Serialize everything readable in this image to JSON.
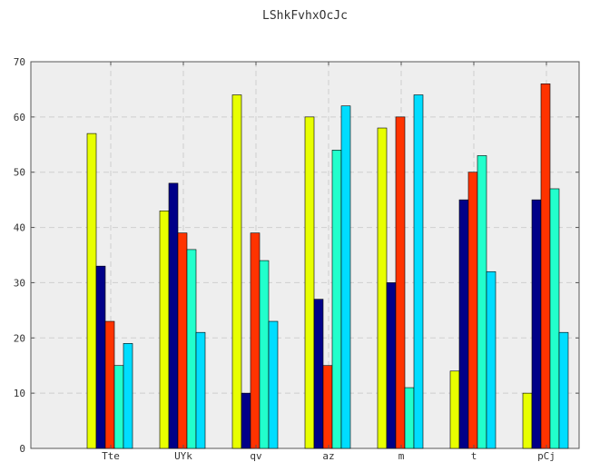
{
  "chart_data": {
    "type": "bar",
    "title": "LShkFvhxOcJc",
    "xlabel": "",
    "ylabel": "",
    "categories": [
      "Tte",
      "UYk",
      "qv",
      "az",
      "m",
      "t",
      "pCj"
    ],
    "series": [
      {
        "values": [
          57,
          43,
          64,
          60,
          58,
          14,
          10
        ],
        "color": "#e8ff00"
      },
      {
        "values": [
          33,
          48,
          10,
          27,
          30,
          45,
          45
        ],
        "color": "#000088"
      },
      {
        "values": [
          23,
          39,
          39,
          15,
          60,
          50,
          66
        ],
        "color": "#ff3300"
      },
      {
        "values": [
          15,
          36,
          34,
          54,
          11,
          53,
          47
        ],
        "color": "#22ffcc"
      },
      {
        "values": [
          19,
          21,
          23,
          62,
          64,
          32,
          21
        ],
        "color": "#00ddff"
      }
    ],
    "ylim": [
      0,
      70
    ],
    "yticks": [
      0,
      10,
      20,
      30,
      40,
      50,
      60,
      70
    ],
    "grid": true,
    "background": "#eeeeee"
  }
}
